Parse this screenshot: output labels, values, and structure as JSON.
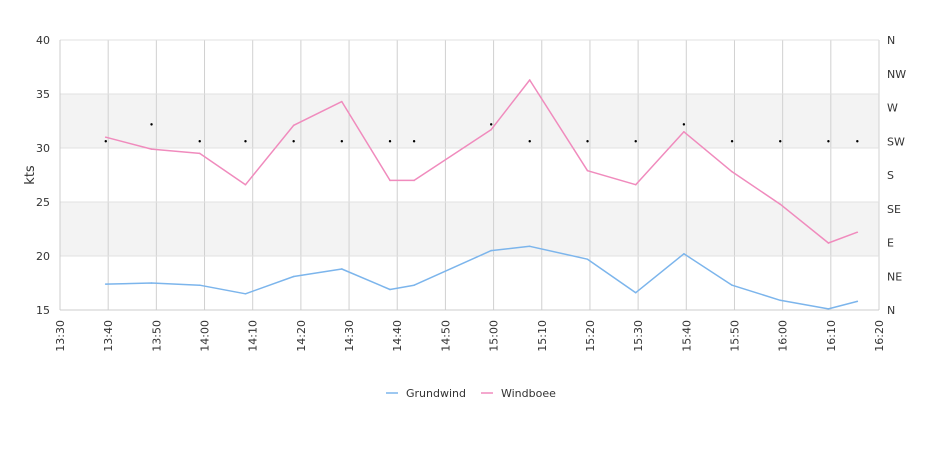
{
  "chart_data": {
    "type": "line",
    "ylabel": "kts",
    "ylim": [
      15,
      40
    ],
    "y_ticks": [
      "15",
      "20",
      "25",
      "30",
      "35",
      "40"
    ],
    "shaded_bands": [
      [
        20,
        25
      ],
      [
        30,
        35
      ]
    ],
    "x_ticks": [
      "13:30",
      "13:40",
      "13:50",
      "14:00",
      "14:10",
      "14:20",
      "14:30",
      "14:40",
      "14:50",
      "15:00",
      "15:10",
      "15:20",
      "15:30",
      "15:40",
      "15:50",
      "16:00",
      "16:10",
      "16:20"
    ],
    "x_tick_minutes": [
      810,
      820,
      830,
      840,
      850,
      860,
      870,
      880,
      890,
      900,
      910,
      920,
      930,
      940,
      950,
      960,
      970,
      980
    ],
    "xlim_minutes": [
      810,
      980
    ],
    "x": [
      "13:39",
      "13:49",
      "13:59",
      "14:09",
      "14:19",
      "14:29",
      "14:39",
      "14:44",
      "15:00",
      "15:08",
      "15:20",
      "15:30",
      "15:39",
      "15:50",
      "16:00",
      "16:10",
      "16:16"
    ],
    "x_minutes": [
      819.5,
      829,
      839,
      848.5,
      858.5,
      868.5,
      878.5,
      883.5,
      899.5,
      907.5,
      919.5,
      929.5,
      939.5,
      949.5,
      959.5,
      969.5,
      975.5
    ],
    "series": [
      {
        "name": "Grundwind",
        "color": "#7cb5ec",
        "values": [
          17.4,
          17.5,
          17.3,
          16.5,
          18.1,
          18.8,
          16.9,
          17.3,
          20.5,
          20.9,
          19.7,
          16.6,
          20.2,
          17.3,
          15.9,
          15.1,
          15.8
        ]
      },
      {
        "name": "Windboee",
        "color": "#f08bbd",
        "values": [
          31.0,
          29.9,
          29.5,
          26.6,
          32.1,
          34.3,
          27.0,
          27.0,
          31.7,
          36.3,
          27.9,
          26.6,
          31.5,
          27.8,
          24.8,
          21.2,
          22.2
        ]
      }
    ],
    "direction_axis": {
      "labels": [
        "N",
        "NE",
        "E",
        "SE",
        "S",
        "SW",
        "W",
        "NW",
        "N"
      ],
      "range_degrees": [
        0,
        360
      ]
    },
    "direction_points_x_minutes": [
      819.5,
      829,
      839,
      848.5,
      858.5,
      868.5,
      878.5,
      883.5,
      899.5,
      907.5,
      919.5,
      929.5,
      939.5,
      949.5,
      959.5,
      969.5,
      975.5
    ],
    "direction_points_degrees": [
      225,
      247.5,
      225,
      225,
      225,
      225,
      225,
      225,
      247.5,
      225,
      225,
      225,
      247.5,
      225,
      225,
      225,
      225
    ],
    "legend": {
      "position": "bottom-center"
    }
  }
}
